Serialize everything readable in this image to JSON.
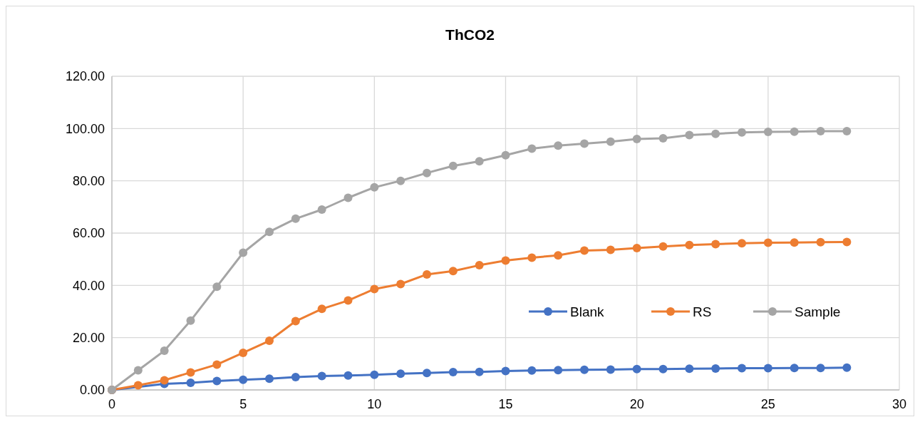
{
  "chart_data": {
    "type": "line",
    "title": "ThCO2",
    "x": [
      0,
      1,
      2,
      3,
      4,
      5,
      6,
      7,
      8,
      9,
      10,
      11,
      12,
      13,
      14,
      15,
      16,
      17,
      18,
      19,
      20,
      21,
      22,
      23,
      24,
      25,
      26,
      27,
      28
    ],
    "series": [
      {
        "name": "Blank",
        "color": "#4472c4",
        "values": [
          0,
          null,
          2.3,
          2.7,
          3.4,
          3.9,
          4.3,
          4.9,
          5.3,
          5.5,
          5.8,
          6.2,
          6.5,
          6.8,
          6.9,
          7.2,
          7.4,
          7.6,
          7.7,
          7.8,
          8.0,
          8.0,
          8.1,
          8.2,
          8.3,
          8.3,
          8.4,
          8.4,
          8.5
        ]
      },
      {
        "name": "RS",
        "color": "#ed7d31",
        "values": [
          0,
          1.8,
          3.7,
          6.7,
          9.7,
          14.2,
          18.8,
          26.3,
          31,
          34.2,
          38.6,
          40.5,
          44.2,
          45.5,
          47.7,
          49.5,
          50.6,
          51.5,
          53.3,
          53.6,
          54.3,
          54.9,
          55.4,
          55.8,
          56.1,
          56.3,
          56.4,
          56.5,
          56.6
        ]
      },
      {
        "name": "Sample",
        "color": "#a5a5a5",
        "values": [
          0,
          7.5,
          15,
          26.5,
          39.5,
          52.5,
          60.5,
          65.5,
          69,
          73.5,
          77.5,
          80,
          83,
          85.7,
          87.5,
          89.8,
          92.3,
          93.5,
          94.2,
          95,
          96,
          96.3,
          97.5,
          98,
          98.5,
          98.7,
          98.8,
          99,
          99
        ]
      }
    ],
    "xlim": [
      0,
      30
    ],
    "xticks": [
      0,
      5,
      10,
      15,
      20,
      25,
      30
    ],
    "ylim": [
      0,
      120
    ],
    "yticks": [
      {
        "value": 0,
        "label": "0.00"
      },
      {
        "value": 20,
        "label": "20.00"
      },
      {
        "value": 40,
        "label": "40.00"
      },
      {
        "value": 60,
        "label": "60.00"
      },
      {
        "value": 80,
        "label": "80.00"
      },
      {
        "value": 100,
        "label": "100.00"
      },
      {
        "value": 120,
        "label": "120.00"
      }
    ],
    "grid": true,
    "legend": "right",
    "marker": "circle",
    "line_style": "solid"
  }
}
